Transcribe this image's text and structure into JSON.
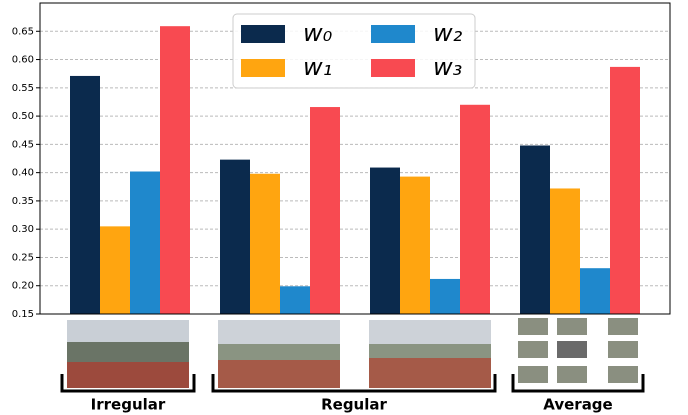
{
  "chart_data": {
    "type": "bar",
    "categories": [
      null,
      null,
      null,
      null
    ],
    "series": [
      {
        "name": "w₀",
        "color": "#0b2a4d",
        "values": [
          0.571,
          0.423,
          0.409,
          0.448
        ]
      },
      {
        "name": "w₁",
        "color": "#ffa510",
        "values": [
          0.305,
          0.398,
          0.393,
          0.372
        ]
      },
      {
        "name": "w₂",
        "color": "#1f88cc",
        "values": [
          0.402,
          0.199,
          0.212,
          0.231
        ]
      },
      {
        "name": "w₃",
        "color": "#f84a51",
        "values": [
          0.659,
          0.516,
          0.52,
          0.587
        ]
      }
    ],
    "ylim": [
      0.15,
      0.7
    ],
    "yticks": [
      0.15,
      {
        "value": 0.2,
        "label": "0.20"
      },
      0.25,
      {
        "value": 0.3,
        "label": "0.30"
      },
      0.35,
      {
        "value": 0.4,
        "label": "0.40"
      },
      0.45,
      {
        "value": 0.5,
        "label": "0.50"
      },
      0.55,
      {
        "value": 0.6,
        "label": "0.60"
      },
      0.65
    ],
    "grid": true,
    "group_labels": [
      "Irregular",
      "Regular",
      "Average"
    ]
  }
}
